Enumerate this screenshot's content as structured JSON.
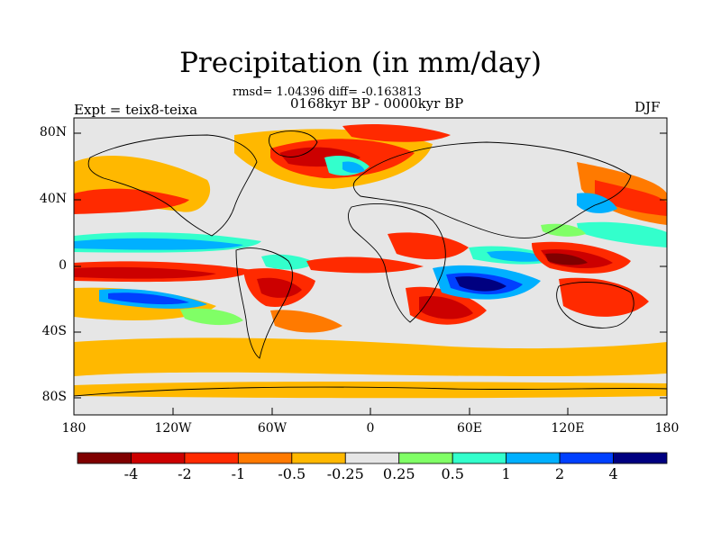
{
  "title": "Precipitation (in mm/day)",
  "stats": "rmsd= 1.04396 diff= -0.163813",
  "period": "0168kyr BP - 0000kyr BP",
  "experiment": "Expt = teix8-teixa",
  "season": "DJF",
  "lat_labels": [
    "80N",
    "40N",
    "0",
    "40S",
    "80S"
  ],
  "lon_labels": [
    "180",
    "120W",
    "60W",
    "0",
    "60E",
    "120E",
    "180"
  ],
  "colorbar": {
    "labels": [
      "-4",
      "-2",
      "-1",
      "-0.5",
      "-0.25",
      "0.25",
      "0.5",
      "1",
      "2",
      "4"
    ],
    "colors": [
      "#7f0000",
      "#cc0000",
      "#ff2a00",
      "#ff7a00",
      "#ffb800",
      "#e6e6e6",
      "#80ff66",
      "#33ffcc",
      "#00b0ff",
      "#0040ff",
      "#000080"
    ]
  }
}
